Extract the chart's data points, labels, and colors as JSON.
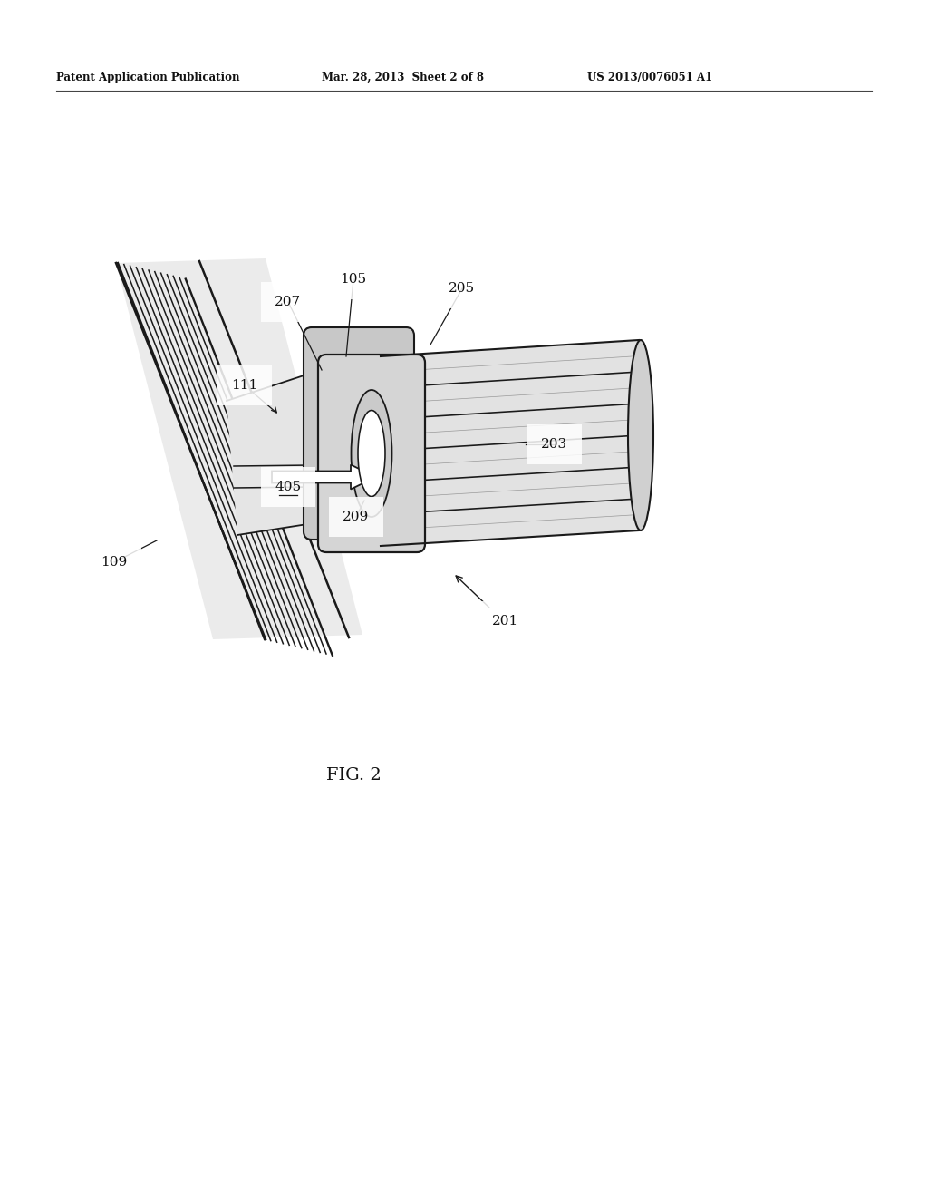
{
  "bg_color": "#ffffff",
  "header_left": "Patent Application Publication",
  "header_center": "Mar. 28, 2013  Sheet 2 of 8",
  "header_right": "US 2013/0076051 A1",
  "fig_label": "FIG. 2",
  "line_color": "#1a1a1a",
  "fill_gray": "#d8d8d8",
  "fill_light": "#eeeeee",
  "fill_mid": "#c8c8c8"
}
